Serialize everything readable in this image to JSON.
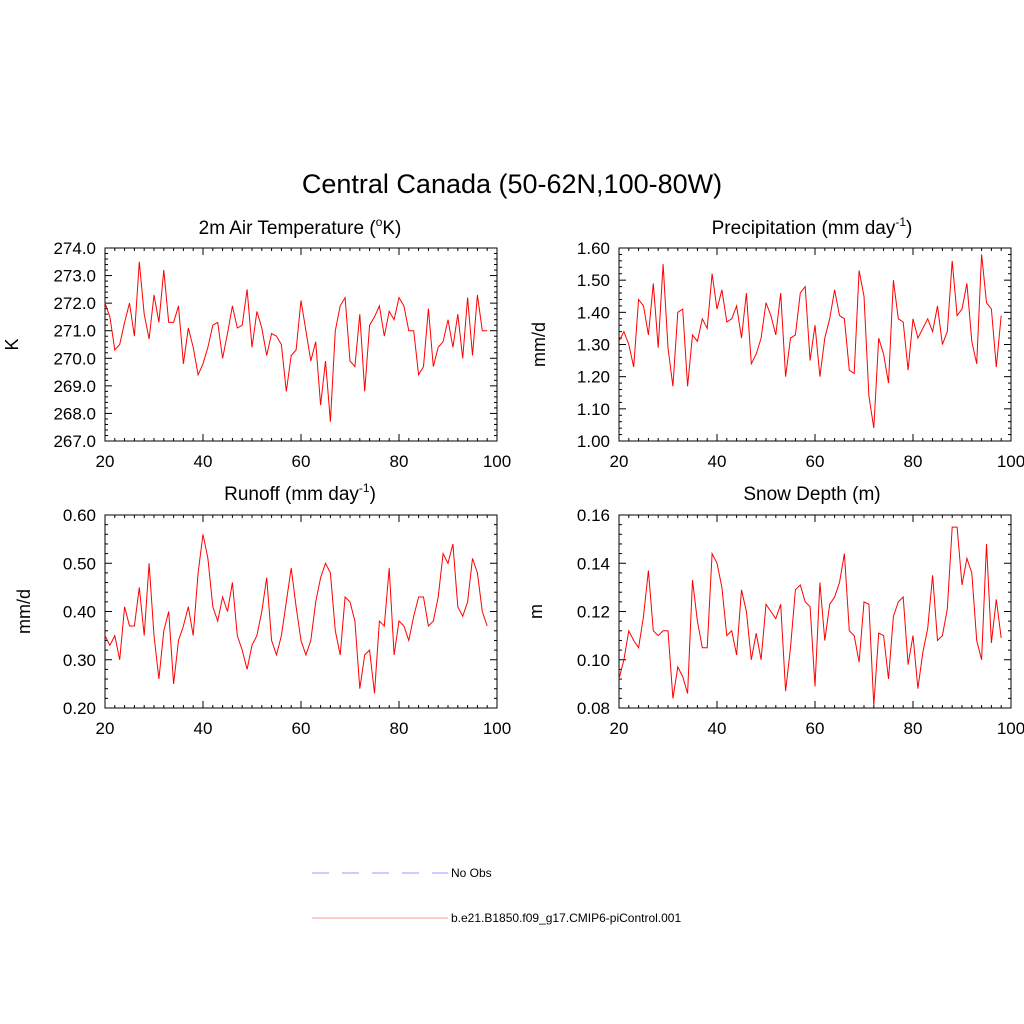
{
  "figure_title": "Central Canada (50-62N,100-80W)",
  "colors": {
    "model": "#ff0000",
    "obs": "#9999ff",
    "model_legend": "#ff9999"
  },
  "legend": [
    {
      "label": "No Obs",
      "style": "dashed",
      "icon": "dashed-line"
    },
    {
      "label": "b.e21.B1850.f09_g17.CMIP6-piControl.001",
      "style": "solid",
      "icon": "solid-line"
    }
  ],
  "chart_data": [
    {
      "type": "line",
      "title_main": "2m Air Temperature (",
      "title_sup": "o",
      "title_end": "K)",
      "ylabel": "K",
      "xlim": [
        20,
        100
      ],
      "ylim": [
        267.0,
        274.0
      ],
      "xticks": [
        20,
        40,
        60,
        80,
        100
      ],
      "yticks": [
        "267.0",
        "268.0",
        "269.0",
        "270.0",
        "271.0",
        "272.0",
        "273.0",
        "274.0"
      ],
      "series": [
        {
          "name": "b.e21.B1850.f09_g17.CMIP6-piControl.001",
          "x": [
            20,
            21,
            22,
            23,
            24,
            25,
            26,
            27,
            28,
            29,
            30,
            31,
            32,
            33,
            34,
            35,
            36,
            37,
            38,
            39,
            40,
            41,
            42,
            43,
            44,
            45,
            46,
            47,
            48,
            49,
            50,
            51,
            52,
            53,
            54,
            55,
            56,
            57,
            58,
            59,
            60,
            61,
            62,
            63,
            64,
            65,
            66,
            67,
            68,
            69,
            70,
            71,
            72,
            73,
            74,
            75,
            76,
            77,
            78,
            79,
            80,
            81,
            82,
            83,
            84,
            85,
            86,
            87,
            88,
            89,
            90,
            91,
            92,
            93,
            94,
            95,
            96,
            97,
            98
          ],
          "values": [
            272.0,
            271.5,
            270.3,
            270.5,
            271.3,
            272.0,
            270.8,
            273.5,
            271.6,
            270.7,
            272.3,
            271.3,
            273.2,
            271.3,
            271.3,
            271.9,
            269.8,
            271.1,
            270.4,
            269.4,
            269.8,
            270.4,
            271.2,
            271.3,
            270.0,
            270.9,
            271.9,
            271.1,
            271.2,
            272.5,
            270.4,
            271.7,
            271.1,
            270.1,
            270.9,
            270.8,
            270.5,
            268.8,
            270.1,
            270.3,
            272.1,
            271.0,
            269.9,
            270.6,
            268.3,
            269.9,
            267.7,
            271.0,
            271.9,
            272.2,
            269.9,
            269.7,
            271.6,
            268.8,
            271.2,
            271.5,
            271.9,
            270.8,
            271.7,
            271.4,
            272.2,
            271.9,
            271.0,
            271.0,
            269.4,
            269.7,
            271.8,
            269.7,
            270.4,
            270.6,
            271.4,
            270.4,
            271.6,
            270.0,
            272.2,
            270.1,
            272.3,
            271.0,
            271.0
          ]
        }
      ]
    },
    {
      "type": "line",
      "title_main": "Precipitation (mm day",
      "title_sup": "-1",
      "title_end": ")",
      "ylabel": "mm/d",
      "xlim": [
        20,
        100
      ],
      "ylim": [
        1.0,
        1.6
      ],
      "xticks": [
        20,
        40,
        60,
        80,
        100
      ],
      "yticks": [
        "1.00",
        "1.10",
        "1.20",
        "1.30",
        "1.40",
        "1.50",
        "1.60"
      ],
      "series": [
        {
          "name": "b.e21.B1850.f09_g17.CMIP6-piControl.001",
          "x": [
            20,
            21,
            22,
            23,
            24,
            25,
            26,
            27,
            28,
            29,
            30,
            31,
            32,
            33,
            34,
            35,
            36,
            37,
            38,
            39,
            40,
            41,
            42,
            43,
            44,
            45,
            46,
            47,
            48,
            49,
            50,
            51,
            52,
            53,
            54,
            55,
            56,
            57,
            58,
            59,
            60,
            61,
            62,
            63,
            64,
            65,
            66,
            67,
            68,
            69,
            70,
            71,
            72,
            73,
            74,
            75,
            76,
            77,
            78,
            79,
            80,
            81,
            82,
            83,
            84,
            85,
            86,
            87,
            88,
            89,
            90,
            91,
            92,
            93,
            94,
            95,
            96,
            97,
            98
          ],
          "values": [
            1.31,
            1.34,
            1.3,
            1.23,
            1.44,
            1.42,
            1.33,
            1.49,
            1.29,
            1.55,
            1.29,
            1.17,
            1.4,
            1.41,
            1.17,
            1.33,
            1.31,
            1.38,
            1.35,
            1.52,
            1.41,
            1.47,
            1.37,
            1.38,
            1.42,
            1.32,
            1.46,
            1.24,
            1.27,
            1.32,
            1.43,
            1.39,
            1.33,
            1.46,
            1.2,
            1.32,
            1.33,
            1.46,
            1.48,
            1.25,
            1.36,
            1.2,
            1.32,
            1.38,
            1.47,
            1.39,
            1.38,
            1.22,
            1.21,
            1.53,
            1.45,
            1.14,
            1.04,
            1.32,
            1.27,
            1.18,
            1.5,
            1.38,
            1.37,
            1.22,
            1.38,
            1.32,
            1.35,
            1.38,
            1.34,
            1.42,
            1.3,
            1.34,
            1.56,
            1.39,
            1.41,
            1.49,
            1.31,
            1.24,
            1.58,
            1.43,
            1.41,
            1.23,
            1.39
          ]
        }
      ]
    },
    {
      "type": "line",
      "title_main": "Runoff (mm day",
      "title_sup": "-1",
      "title_end": ")",
      "ylabel": "mm/d",
      "xlim": [
        20,
        100
      ],
      "ylim": [
        0.2,
        0.6
      ],
      "xticks": [
        20,
        40,
        60,
        80,
        100
      ],
      "yticks": [
        "0.20",
        "0.30",
        "0.40",
        "0.50",
        "0.60"
      ],
      "series": [
        {
          "name": "b.e21.B1850.f09_g17.CMIP6-piControl.001",
          "x": [
            20,
            21,
            22,
            23,
            24,
            25,
            26,
            27,
            28,
            29,
            30,
            31,
            32,
            33,
            34,
            35,
            36,
            37,
            38,
            39,
            40,
            41,
            42,
            43,
            44,
            45,
            46,
            47,
            48,
            49,
            50,
            51,
            52,
            53,
            54,
            55,
            56,
            57,
            58,
            59,
            60,
            61,
            62,
            63,
            64,
            65,
            66,
            67,
            68,
            69,
            70,
            71,
            72,
            73,
            74,
            75,
            76,
            77,
            78,
            79,
            80,
            81,
            82,
            83,
            84,
            85,
            86,
            87,
            88,
            89,
            90,
            91,
            92,
            93,
            94,
            95,
            96,
            97,
            98
          ],
          "values": [
            0.35,
            0.33,
            0.35,
            0.3,
            0.41,
            0.37,
            0.37,
            0.45,
            0.35,
            0.5,
            0.35,
            0.26,
            0.36,
            0.4,
            0.25,
            0.34,
            0.37,
            0.41,
            0.35,
            0.48,
            0.56,
            0.51,
            0.41,
            0.38,
            0.43,
            0.4,
            0.46,
            0.35,
            0.32,
            0.28,
            0.33,
            0.35,
            0.4,
            0.47,
            0.34,
            0.31,
            0.35,
            0.42,
            0.49,
            0.41,
            0.34,
            0.31,
            0.34,
            0.42,
            0.47,
            0.5,
            0.48,
            0.36,
            0.31,
            0.43,
            0.42,
            0.38,
            0.24,
            0.31,
            0.32,
            0.23,
            0.38,
            0.37,
            0.49,
            0.31,
            0.38,
            0.37,
            0.34,
            0.39,
            0.43,
            0.43,
            0.37,
            0.38,
            0.43,
            0.52,
            0.5,
            0.54,
            0.41,
            0.39,
            0.42,
            0.51,
            0.48,
            0.4,
            0.37
          ]
        }
      ]
    },
    {
      "type": "line",
      "title_main": "Snow Depth (m)",
      "title_sup": "",
      "title_end": "",
      "ylabel": "m",
      "xlim": [
        20,
        100
      ],
      "ylim": [
        0.08,
        0.16
      ],
      "xticks": [
        20,
        40,
        60,
        80,
        100
      ],
      "yticks": [
        "0.08",
        "0.10",
        "0.12",
        "0.14",
        "0.16"
      ],
      "series": [
        {
          "name": "b.e21.B1850.f09_g17.CMIP6-piControl.001",
          "x": [
            20,
            21,
            22,
            23,
            24,
            25,
            26,
            27,
            28,
            29,
            30,
            31,
            32,
            33,
            34,
            35,
            36,
            37,
            38,
            39,
            40,
            41,
            42,
            43,
            44,
            45,
            46,
            47,
            48,
            49,
            50,
            51,
            52,
            53,
            54,
            55,
            56,
            57,
            58,
            59,
            60,
            61,
            62,
            63,
            64,
            65,
            66,
            67,
            68,
            69,
            70,
            71,
            72,
            73,
            74,
            75,
            76,
            77,
            78,
            79,
            80,
            81,
            82,
            83,
            84,
            85,
            86,
            87,
            88,
            89,
            90,
            91,
            92,
            93,
            94,
            95,
            96,
            97,
            98
          ],
          "values": [
            0.092,
            0.1,
            0.112,
            0.108,
            0.105,
            0.118,
            0.137,
            0.112,
            0.11,
            0.112,
            0.112,
            0.084,
            0.097,
            0.093,
            0.086,
            0.133,
            0.116,
            0.105,
            0.105,
            0.144,
            0.14,
            0.13,
            0.11,
            0.112,
            0.102,
            0.129,
            0.12,
            0.1,
            0.111,
            0.1,
            0.123,
            0.12,
            0.117,
            0.123,
            0.087,
            0.105,
            0.129,
            0.131,
            0.124,
            0.122,
            0.089,
            0.132,
            0.108,
            0.123,
            0.126,
            0.132,
            0.144,
            0.112,
            0.11,
            0.099,
            0.124,
            0.123,
            0.081,
            0.111,
            0.11,
            0.092,
            0.118,
            0.124,
            0.126,
            0.098,
            0.11,
            0.088,
            0.103,
            0.113,
            0.135,
            0.108,
            0.11,
            0.121,
            0.155,
            0.155,
            0.131,
            0.142,
            0.136,
            0.108,
            0.1,
            0.148,
            0.107,
            0.125,
            0.109
          ]
        }
      ]
    }
  ]
}
